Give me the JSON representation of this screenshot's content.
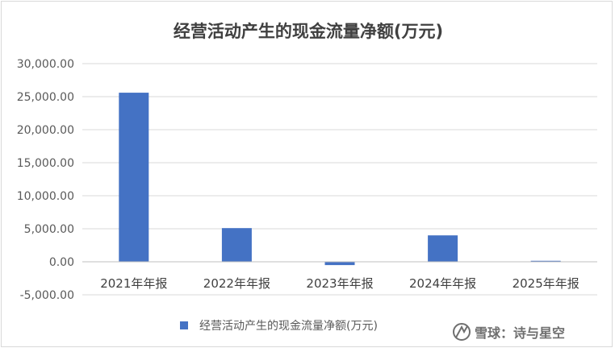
{
  "chart_data": {
    "type": "bar",
    "title": "经营活动产生的现金流量净额(万元)",
    "categories": [
      "2021年年报",
      "2022年年报",
      "2023年年报",
      "2024年年报",
      "2025年年报"
    ],
    "series": [
      {
        "name": "经营活动产生的现金流量净额(万元)",
        "values": [
          25600,
          5100,
          -500,
          4000,
          150
        ],
        "color": "#4472c4"
      }
    ],
    "ylim": [
      -5000,
      30000
    ],
    "yticks": [
      30000,
      25000,
      20000,
      15000,
      10000,
      5000,
      0,
      -5000
    ],
    "ytick_labels": [
      "30,000.00",
      "25,000.00",
      "20,000.00",
      "15,000.00",
      "10,000.00",
      "5,000.00",
      "0.00",
      "-5,000.00"
    ],
    "grid": true,
    "legend_position": "bottom"
  },
  "watermark": {
    "text": "雪球：诗与星空"
  }
}
